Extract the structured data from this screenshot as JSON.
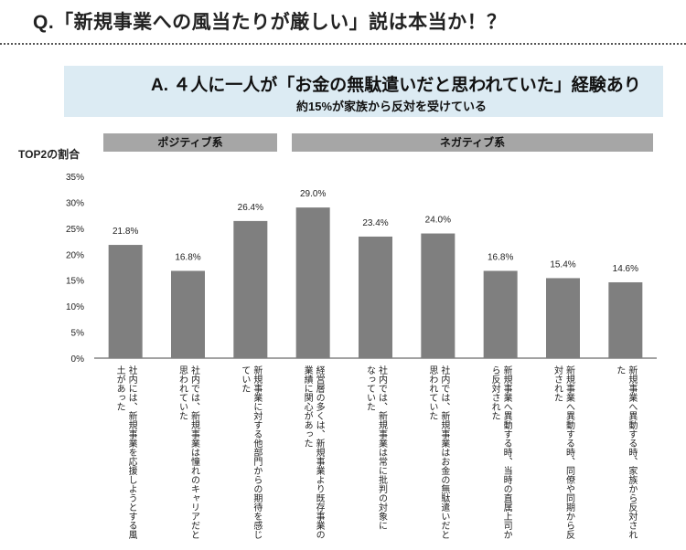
{
  "question": "Q.「新規事業への風当たりが厳しい」説は本当か！？",
  "answer": "A. ４人に一人が「お金の無駄遣いだと思われていた」経験あり",
  "subheading": "約15%が家族から反対を受けている",
  "y_axis_label": "TOP2の割合",
  "groups": {
    "positive": "ポジティブ系",
    "negative": "ネガティブ系"
  },
  "chart_data": {
    "type": "bar",
    "ylim": [
      0,
      35
    ],
    "yticks": [
      "0%",
      "5%",
      "10%",
      "15%",
      "20%",
      "25%",
      "30%",
      "35%"
    ],
    "bar_color": "#7f7f7f",
    "grid": false,
    "categories": [
      [
        "社内には、新規事業を応援しようとする風",
        "土があった"
      ],
      [
        "社内では、新規事業は憧れのキャリアだと",
        "思われていた"
      ],
      [
        "新規事業に対する他部門からの期待を感じ",
        "ていた"
      ],
      [
        "経営層の多くは、新規事業より既存事業の",
        "業績に関心があった"
      ],
      [
        "社内では、新規事業は常に批判の対象に",
        "なっていた"
      ],
      [
        "社内では、新規事業はお金の無駄遣いだと",
        "思われていた"
      ],
      [
        "新規事業へ異動する時、当時の直属上司か",
        "ら反対された"
      ],
      [
        "新規事業へ異動する時、同僚や同期から反",
        "対された"
      ],
      [
        "新規事業へ異動する時、家族から反対され",
        "た"
      ]
    ],
    "values": [
      21.8,
      16.8,
      26.4,
      29.0,
      23.4,
      24.0,
      16.8,
      15.4,
      14.6
    ],
    "value_labels": [
      "21.8%",
      "16.8%",
      "26.4%",
      "29.0%",
      "23.4%",
      "24.0%",
      "16.8%",
      "15.4%",
      "14.6%"
    ]
  }
}
